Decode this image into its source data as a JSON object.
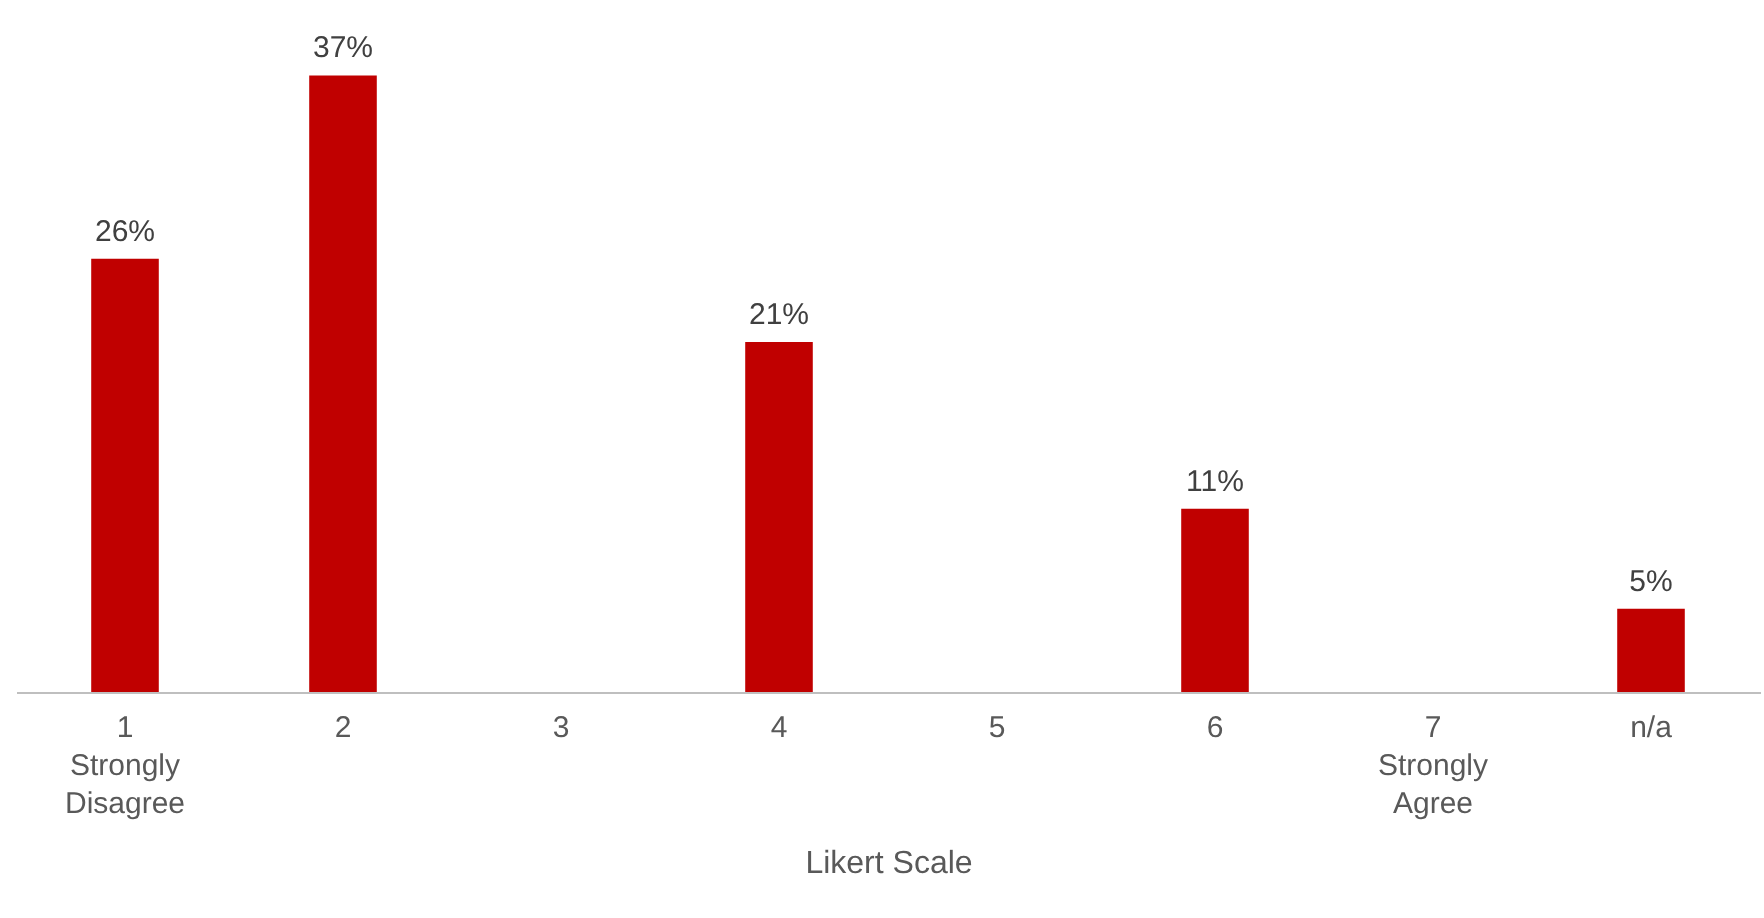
{
  "chart_data": {
    "type": "bar",
    "xlabel": "Likert Scale",
    "categories": [
      "1\nStrongly\nDisagree",
      "2",
      "3",
      "4",
      "5",
      "6",
      "7\nStrongly\nAgree",
      "n/a"
    ],
    "values": [
      26,
      37,
      null,
      21,
      null,
      11,
      null,
      5
    ],
    "value_labels": [
      "26%",
      "37%",
      null,
      "21%",
      null,
      "11%",
      null,
      "5%"
    ],
    "color": "#c00000",
    "grid": false
  }
}
